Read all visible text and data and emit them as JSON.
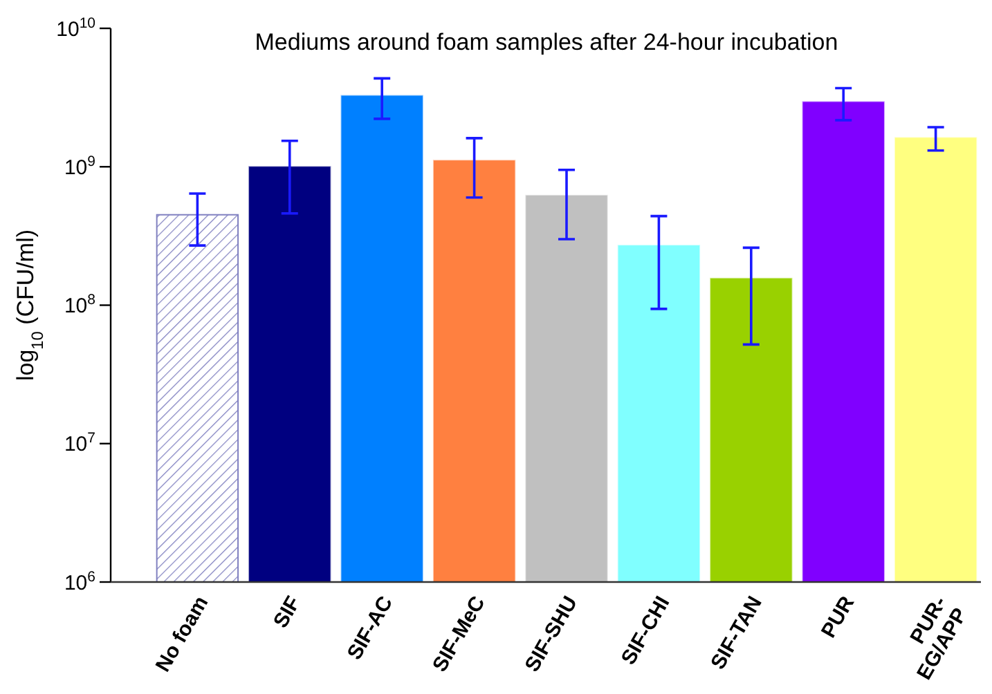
{
  "chart_data": {
    "type": "bar",
    "title": "Mediums around foam samples after 24-hour incubation",
    "ylabel": "log$_{10}$ (CFU/ml)",
    "categories": [
      "No foam",
      "SIF",
      "SIF-AC",
      "SIF-MeC",
      "SIF-SHU",
      "SIF-CHI",
      "SIF-TAN",
      "PUR",
      "PUR-EG/APP"
    ],
    "values": [
      450000000,
      1000000000,
      3260000000,
      1110000000,
      620000000,
      270000000,
      156000000,
      2940000000,
      1620000000
    ],
    "errors": [
      [
        270000000,
        640000000
      ],
      [
        460000000,
        1540000000
      ],
      [
        2220000000,
        4350000000
      ],
      [
        600000000,
        1610000000
      ],
      [
        300000000,
        950000000
      ],
      [
        94000000,
        440000000
      ],
      [
        52000000,
        260000000
      ],
      [
        2170000000,
        3700000000
      ],
      [
        1310000000,
        1930000000
      ]
    ],
    "colors": [
      "#8080c0",
      "#000080",
      "#0080ff",
      "#ff8040",
      "#c0c0c0",
      "#80ffff",
      "#99d100",
      "#8000ff",
      "#ffff80"
    ],
    "log": true,
    "ylim": [
      1000000,
      10000000000
    ],
    "yticks": [
      {
        "value": 1000000,
        "label": "10$^{6}$"
      },
      {
        "value": 10000000,
        "label": "10$^{7}$"
      },
      {
        "value": 100000000,
        "label": "10$^{8}$"
      },
      {
        "value": 1000000000,
        "label": "10$^{9}$"
      },
      {
        "value": 10000000000,
        "label": "10$^{10}$"
      }
    ],
    "grid": false
  }
}
